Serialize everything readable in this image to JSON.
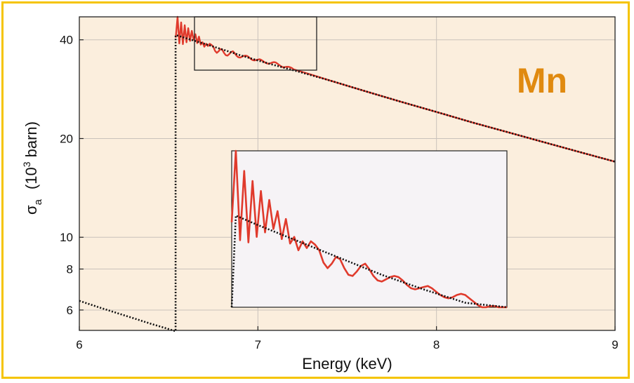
{
  "chart_data": {
    "type": "line",
    "title": "",
    "xlabel": "Energy (keV)",
    "ylabel_base": "σ",
    "ylabel_sub": "a",
    "ylabel_unit_open": "(10",
    "ylabel_unit_sup": "3",
    "ylabel_unit_close": " barn)",
    "annotation": "Mn",
    "xlim": [
      6,
      9
    ],
    "ylim": [
      5.2,
      47
    ],
    "y_scale": "log",
    "grid": true,
    "x_ticks": [
      {
        "value": 6,
        "label": "6"
      },
      {
        "value": 7,
        "label": "7"
      },
      {
        "value": 8,
        "label": "8"
      },
      {
        "value": 9,
        "label": "9"
      }
    ],
    "y_ticks": [
      {
        "value": 6,
        "label": "6"
      },
      {
        "value": 8,
        "label": "8"
      },
      {
        "value": 10,
        "label": "10"
      },
      {
        "value": 20,
        "label": "20"
      },
      {
        "value": 40,
        "label": "40"
      }
    ],
    "colors": {
      "plot_background": "#fbeedd",
      "measured": "#e03a2c",
      "atomic": "#111111",
      "inset_background": "#f6f3f6",
      "annotation": "#e08a10",
      "frame": "#f5c400"
    },
    "edge_energy": 6.539,
    "inset_window": {
      "xlim": [
        6.54,
        7.2
      ],
      "ylim": [
        33,
        47
      ]
    },
    "series": [
      {
        "style": "solid",
        "x": [
          6.54,
          6.55,
          6.56,
          6.57,
          6.58,
          6.59,
          6.6,
          6.61,
          6.62,
          6.63,
          6.64,
          6.65,
          6.66,
          6.67,
          6.68,
          6.69,
          6.7,
          6.71,
          6.72,
          6.73,
          6.74,
          6.75,
          6.76,
          6.77,
          6.78,
          6.79,
          6.8,
          6.81,
          6.82,
          6.83,
          6.84,
          6.85,
          6.86,
          6.87,
          6.88,
          6.89,
          6.9,
          6.91,
          6.92,
          6.93,
          6.94,
          6.95,
          6.96,
          6.97,
          6.98,
          6.99,
          7.0,
          7.01,
          7.02,
          7.03,
          7.04,
          7.05,
          7.06,
          7.07,
          7.08,
          7.09,
          7.1,
          7.11,
          7.12,
          7.13,
          7.14,
          7.15,
          7.16,
          7.17,
          7.18,
          7.19,
          7.2,
          7.3,
          7.4,
          7.6,
          7.8,
          8.0,
          8.2,
          8.4,
          8.6,
          8.8,
          9.0
        ],
        "y": [
          40.6,
          47.0,
          39.0,
          45.2,
          38.8,
          44.3,
          39.3,
          43.4,
          39.7,
          42.6,
          40.0,
          41.6,
          39.1,
          40.9,
          38.7,
          39.3,
          38.1,
          38.9,
          38.3,
          38.9,
          38.6,
          38.1,
          37.0,
          36.5,
          36.9,
          37.5,
          37.3,
          36.5,
          35.9,
          35.8,
          36.2,
          36.7,
          36.9,
          36.4,
          35.8,
          35.4,
          35.3,
          35.5,
          35.7,
          35.8,
          35.7,
          35.4,
          35.0,
          34.7,
          34.6,
          34.7,
          34.8,
          34.9,
          34.7,
          34.4,
          34.1,
          33.9,
          33.8,
          33.9,
          34.1,
          34.2,
          34.1,
          33.8,
          33.5,
          33.2,
          33.0,
          33.0,
          33.1,
          33.1,
          33.0,
          32.8,
          32.5,
          31.3,
          30.1,
          27.9,
          25.9,
          24.1,
          22.4,
          20.9,
          19.5,
          18.2,
          17.0
        ]
      },
      {
        "style": "dotted",
        "x": [
          6.0,
          6.1,
          6.2,
          6.3,
          6.4,
          6.5,
          6.539,
          6.539,
          6.55,
          6.6,
          6.7,
          6.8,
          6.9,
          7.0,
          7.1,
          7.2,
          7.4,
          7.6,
          7.8,
          8.0,
          8.2,
          8.4,
          8.6,
          8.8,
          9.0
        ],
        "y": [
          6.4,
          6.14,
          5.9,
          5.67,
          5.45,
          5.25,
          5.17,
          41.3,
          41.2,
          40.4,
          38.9,
          37.4,
          35.9,
          34.6,
          33.4,
          32.3,
          30.1,
          27.9,
          25.9,
          24.1,
          22.4,
          20.9,
          19.5,
          18.2,
          17.0
        ]
      }
    ]
  }
}
